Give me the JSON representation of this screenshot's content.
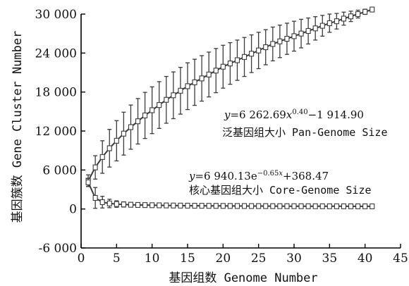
{
  "chart_data": {
    "type": "line",
    "title": "",
    "xlabel": "基因组数 Genome Number",
    "ylabel": "基因簇数 Gene Cluster Number",
    "xlim": [
      0,
      45
    ],
    "ylim": [
      -6000,
      30000
    ],
    "x_ticks": [
      0,
      5,
      10,
      15,
      20,
      25,
      30,
      35,
      40,
      45
    ],
    "x_tick_labels": [
      "0",
      "5",
      "10",
      "15",
      "20",
      "25",
      "30",
      "35",
      "40",
      "45"
    ],
    "y_ticks": [
      -6000,
      0,
      6000,
      12000,
      18000,
      24000,
      30000
    ],
    "y_tick_labels": [
      "-6 000",
      "0",
      "6 000",
      "12 000",
      "18 000",
      "24 000",
      "30 000"
    ],
    "grid": false,
    "series": [
      {
        "name": "泛基因组大小 Pan-Genome Size",
        "x": [
          1,
          2,
          3,
          4,
          5,
          6,
          7,
          8,
          9,
          10,
          11,
          12,
          13,
          14,
          15,
          16,
          17,
          18,
          19,
          20,
          21,
          22,
          23,
          24,
          25,
          26,
          27,
          28,
          29,
          30,
          31,
          32,
          33,
          34,
          35,
          36,
          37,
          38,
          39,
          40,
          41
        ],
        "y": [
          4350,
          6400,
          8000,
          9350,
          10500,
          11600,
          12600,
          13500,
          14400,
          15200,
          16000,
          16800,
          17500,
          18200,
          18900,
          19500,
          20100,
          20700,
          21300,
          21900,
          22400,
          22900,
          23400,
          23900,
          24400,
          24900,
          25400,
          25800,
          26200,
          26600,
          27000,
          27400,
          27800,
          28200,
          28600,
          28900,
          29300,
          29650,
          30000,
          30350,
          30700
        ],
        "err": [
          900,
          1800,
          2500,
          2900,
          3100,
          3300,
          3400,
          3500,
          3550,
          3600,
          3600,
          3600,
          3600,
          3600,
          3600,
          3550,
          3500,
          3450,
          3400,
          3300,
          3200,
          3100,
          3000,
          2900,
          2800,
          2700,
          2600,
          2500,
          2400,
          2300,
          2200,
          2000,
          1800,
          1600,
          1400,
          1200,
          1000,
          800,
          600,
          400,
          200
        ]
      },
      {
        "name": "核心基因组大小 Core-Genome Size",
        "x": [
          1,
          2,
          3,
          4,
          5,
          6,
          7,
          8,
          9,
          10,
          11,
          12,
          13,
          14,
          15,
          16,
          17,
          18,
          19,
          20,
          21,
          22,
          23,
          24,
          25,
          26,
          27,
          28,
          29,
          30,
          31,
          32,
          33,
          34,
          35,
          36,
          37,
          38,
          39,
          40,
          41
        ],
        "y": [
          4100,
          1700,
          1050,
          850,
          760,
          700,
          650,
          620,
          600,
          580,
          560,
          545,
          530,
          520,
          510,
          500,
          492,
          485,
          478,
          472,
          466,
          461,
          456,
          452,
          448,
          444,
          440,
          437,
          434,
          431,
          428,
          425,
          423,
          421,
          419,
          417,
          415,
          413,
          411,
          409,
          407
        ],
        "err": [
          600,
          1600,
          900,
          650,
          500,
          400,
          350,
          300,
          270,
          250,
          230,
          210,
          200,
          190,
          180,
          170,
          160,
          150,
          140,
          130,
          120,
          110,
          100,
          95,
          90,
          85,
          80,
          75,
          70,
          65,
          60,
          55,
          50,
          45,
          40,
          35,
          30,
          25,
          20,
          15,
          10
        ]
      }
    ],
    "annotations": [
      {
        "equation": "y=6 262.69x0.40−1 914.90",
        "label": "泛基因组大小 Pan-Genome Size"
      },
      {
        "equation": "y=6 940.13e−0.65x+368.47",
        "label": "核心基因组大小 Core-Genome Size"
      }
    ]
  }
}
